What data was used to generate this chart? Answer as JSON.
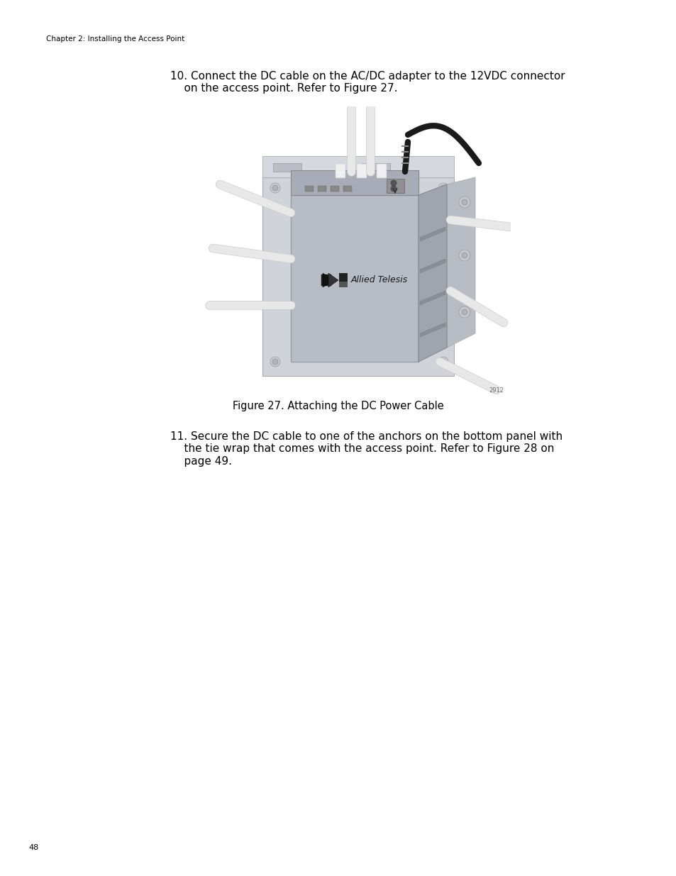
{
  "page_width": 9.54,
  "page_height": 12.35,
  "dpi": 100,
  "background_color": "#ffffff",
  "header_text": "Chapter 2: Installing the Access Point",
  "header_fontsize": 7.5,
  "footer_text": "48",
  "footer_fontsize": 8,
  "step10_line1": "10. Connect the DC cable on the AC/DC adapter to the 12VDC connector",
  "step10_line2": "    on the access point. Refer to Figure 27.",
  "step10_fontsize": 11,
  "figure_caption": "Figure 27. Attaching the DC Power Cable",
  "figure_caption_fontsize": 10.5,
  "step11_line1": "11. Secure the DC cable to one of the anchors on the bottom panel with",
  "step11_line2": "    the tie wrap that comes with the access point. Refer to Figure 28 on",
  "step11_line3": "    page 49.",
  "step11_fontsize": 11,
  "text_color": "#000000",
  "device_front_color": "#b8bcc6",
  "device_right_color": "#a0a4ae",
  "device_top_color": "#cccfd8",
  "wall_plate_color": "#d0d3da",
  "wall_plate_right_color": "#b8bcc4",
  "antenna_color": "#e8e8e8",
  "antenna_edge_color": "#cccccc",
  "cable_color": "#1a1a1a",
  "vent_color": "#8a8e98",
  "logo_color": "#1a1a1a"
}
